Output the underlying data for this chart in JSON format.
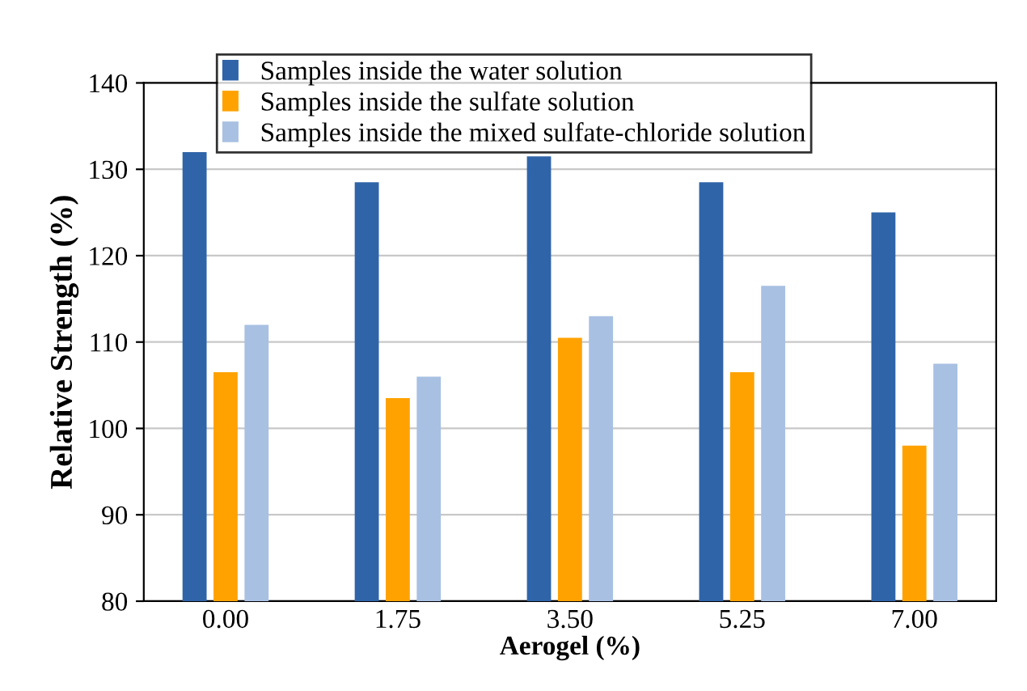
{
  "chart_data": {
    "type": "bar",
    "xlabel": "Aerogel (%)",
    "ylabel": "Relative Strength (%)",
    "categories": [
      "0.00",
      "1.75",
      "3.50",
      "5.25",
      "7.00"
    ],
    "series": [
      {
        "name": "Samples inside the water solution",
        "color": "#2f64a8",
        "values": [
          132,
          128.5,
          131.5,
          128.5,
          125
        ]
      },
      {
        "name": "Samples inside the sulfate solution",
        "color": "#ffa200",
        "values": [
          106.5,
          103.5,
          110.5,
          106.5,
          98
        ]
      },
      {
        "name": "Samples inside the mixed sulfate-chloride solution",
        "color": "#a8c0e2",
        "values": [
          112,
          106,
          113,
          116.5,
          107.5
        ]
      }
    ],
    "ylim": [
      80,
      140
    ],
    "yticks": [
      80,
      90,
      100,
      110,
      120,
      130,
      140
    ],
    "grid": "y",
    "legend": "top left"
  }
}
